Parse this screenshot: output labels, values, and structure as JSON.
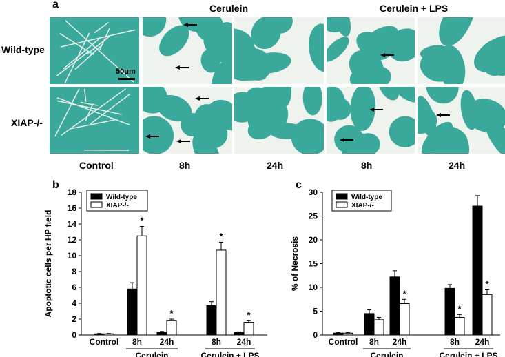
{
  "panel_a": {
    "letter": "a",
    "group_headers": [
      "Cerulein",
      "Cerulein + LPS"
    ],
    "row_labels": [
      "Wild-type",
      "XIAP-/-"
    ],
    "column_labels": [
      "Control",
      "8h",
      "24h",
      "8h",
      "24h"
    ],
    "scale_bar_label": "50μm",
    "tissue_color": "#3aa89a"
  },
  "chart_data": [
    {
      "letter": "b",
      "type": "bar",
      "ylabel": "Apoptotic cells per HP field",
      "ylim": [
        0,
        18
      ],
      "yticks": [
        0,
        2,
        4,
        6,
        8,
        10,
        12,
        14,
        16,
        18
      ],
      "categories": [
        "Control",
        "8h",
        "24h",
        "8h",
        "24h"
      ],
      "groups": [
        {
          "label": "Cerulein",
          "categories": [
            "8h",
            "24h"
          ]
        },
        {
          "label": "Cerulein + LPS",
          "categories": [
            "8h",
            "24h"
          ]
        }
      ],
      "legend": {
        "placement": "top-left"
      },
      "series": [
        {
          "name": "Wild-type",
          "color": "#000000",
          "values": [
            0.15,
            5.8,
            0.35,
            3.7,
            0.3
          ],
          "errors": [
            0.05,
            0.8,
            0.1,
            0.5,
            0.1
          ]
        },
        {
          "name": "XIAP-/-",
          "color": "#ffffff",
          "values": [
            0.15,
            12.5,
            1.8,
            10.7,
            1.6
          ],
          "errors": [
            0.05,
            1.2,
            0.2,
            1.0,
            0.2
          ]
        }
      ],
      "significance": [
        {
          "series": 1,
          "index": 1,
          "mark": "*"
        },
        {
          "series": 1,
          "index": 2,
          "mark": "*"
        },
        {
          "series": 1,
          "index": 3,
          "mark": "*"
        },
        {
          "series": 1,
          "index": 4,
          "mark": "*"
        }
      ]
    },
    {
      "letter": "c",
      "type": "bar",
      "ylabel": "% of Necrosis",
      "ylim": [
        0,
        30
      ],
      "yticks": [
        0,
        5,
        10,
        15,
        20,
        25,
        30
      ],
      "categories": [
        "Control",
        "8h",
        "24h",
        "8h",
        "24h"
      ],
      "groups": [
        {
          "label": "Cerulein",
          "categories": [
            "8h",
            "24h"
          ]
        },
        {
          "label": "Cerulein + LPS",
          "categories": [
            "8h",
            "24h"
          ]
        }
      ],
      "legend": {
        "placement": "top-left"
      },
      "series": [
        {
          "name": "Wild-type",
          "color": "#000000",
          "values": [
            0.4,
            4.5,
            12.2,
            9.8,
            27.1
          ],
          "errors": [
            0.1,
            0.8,
            1.3,
            0.8,
            2.2
          ]
        },
        {
          "name": "XIAP-/-",
          "color": "#ffffff",
          "values": [
            0.4,
            3.2,
            6.6,
            3.7,
            8.5
          ],
          "errors": [
            0.1,
            0.5,
            0.9,
            0.6,
            1.0
          ]
        }
      ],
      "significance": [
        {
          "series": 1,
          "index": 2,
          "mark": "*"
        },
        {
          "series": 1,
          "index": 3,
          "mark": "*"
        },
        {
          "series": 1,
          "index": 4,
          "mark": "*"
        }
      ]
    }
  ]
}
